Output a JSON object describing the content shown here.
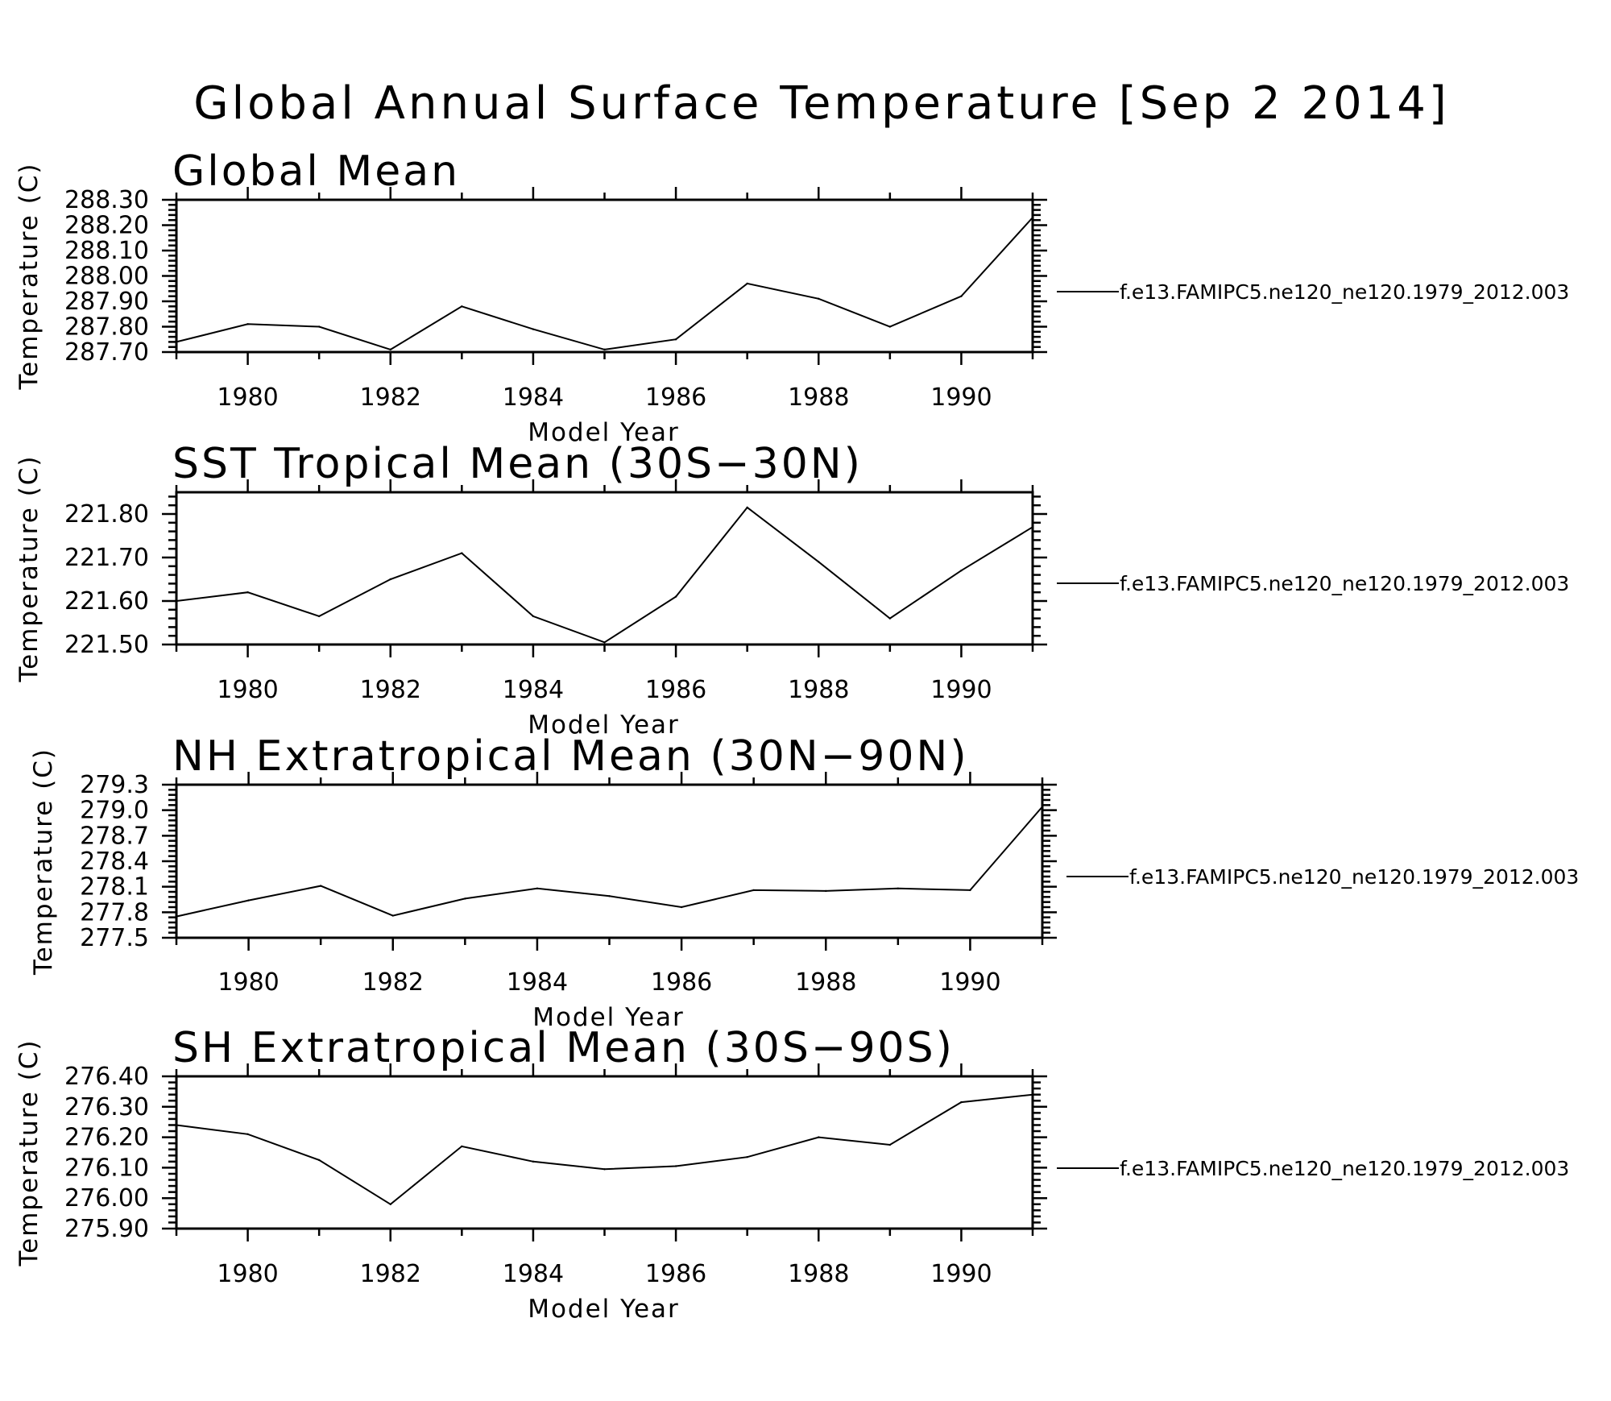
{
  "figure": {
    "title": "Global Annual Surface Temperature [Sep  2 2014]"
  },
  "chart_data": [
    {
      "type": "line",
      "title": "Global Mean",
      "xlabel": "Model Year",
      "ylabel": "Temperature (C)",
      "xlim": [
        1979,
        1991
      ],
      "ylim": [
        287.7,
        288.3
      ],
      "grid": false,
      "legend_placement": "right",
      "x_ticks": [
        "1980",
        "1982",
        "1984",
        "1986",
        "1988",
        "1990"
      ],
      "y_ticks": [
        "287.70",
        "287.80",
        "287.90",
        "288.00",
        "288.10",
        "288.20",
        "288.30"
      ],
      "series": [
        {
          "name": "f.e13.FAMIPC5.ne120_ne120.1979_2012.003",
          "x": [
            1979,
            1980,
            1981,
            1982,
            1983,
            1984,
            1985,
            1986,
            1987,
            1988,
            1989,
            1990,
            1991
          ],
          "y": [
            287.74,
            287.81,
            287.8,
            287.71,
            287.88,
            287.79,
            287.71,
            287.75,
            287.97,
            287.91,
            287.8,
            287.92,
            288.23
          ]
        }
      ]
    },
    {
      "type": "line",
      "title": "SST Tropical Mean (30S−30N)",
      "xlabel": "Model Year",
      "ylabel": "Temperature (C)",
      "xlim": [
        1979,
        1991
      ],
      "ylim": [
        221.5,
        221.85
      ],
      "grid": false,
      "legend_placement": "right",
      "x_ticks": [
        "1980",
        "1982",
        "1984",
        "1986",
        "1988",
        "1990"
      ],
      "y_ticks": [
        "221.50",
        "221.60",
        "221.70",
        "221.80"
      ],
      "series": [
        {
          "name": "f.e13.FAMIPC5.ne120_ne120.1979_2012.003",
          "x": [
            1979,
            1980,
            1981,
            1982,
            1983,
            1984,
            1985,
            1986,
            1987,
            1988,
            1989,
            1990,
            1991
          ],
          "y": [
            221.6,
            221.62,
            221.565,
            221.65,
            221.71,
            221.565,
            221.505,
            221.61,
            221.815,
            221.69,
            221.56,
            221.67,
            221.77
          ]
        }
      ]
    },
    {
      "type": "line",
      "title": "NH Extratropical Mean (30N−90N)",
      "xlabel": "Model Year",
      "ylabel": "Temperature (C)",
      "xlim": [
        1979,
        1991
      ],
      "ylim": [
        277.5,
        279.3
      ],
      "grid": false,
      "legend_placement": "right",
      "x_ticks": [
        "1980",
        "1982",
        "1984",
        "1986",
        "1988",
        "1990"
      ],
      "y_ticks": [
        "277.5",
        "277.8",
        "278.1",
        "278.4",
        "278.7",
        "279.0",
        "279.3"
      ],
      "series": [
        {
          "name": "f.e13.FAMIPC5.ne120_ne120.1979_2012.003",
          "x": [
            1979,
            1980,
            1981,
            1982,
            1983,
            1984,
            1985,
            1986,
            1987,
            1988,
            1989,
            1990,
            1991
          ],
          "y": [
            277.75,
            277.94,
            278.11,
            277.76,
            277.96,
            278.08,
            277.99,
            277.86,
            278.06,
            278.05,
            278.08,
            278.06,
            279.04
          ]
        }
      ]
    },
    {
      "type": "line",
      "title": "SH Extratropical Mean (30S−90S)",
      "xlabel": "Model Year",
      "ylabel": "Temperature (C)",
      "xlim": [
        1979,
        1991
      ],
      "ylim": [
        275.9,
        276.4
      ],
      "grid": false,
      "legend_placement": "right",
      "x_ticks": [
        "1980",
        "1982",
        "1984",
        "1986",
        "1988",
        "1990"
      ],
      "y_ticks": [
        "275.90",
        "276.00",
        "276.10",
        "276.20",
        "276.30",
        "276.40"
      ],
      "series": [
        {
          "name": "f.e13.FAMIPC5.ne120_ne120.1979_2012.003",
          "x": [
            1979,
            1980,
            1981,
            1982,
            1983,
            1984,
            1985,
            1986,
            1987,
            1988,
            1989,
            1990,
            1991
          ],
          "y": [
            276.24,
            276.21,
            276.125,
            275.98,
            276.17,
            276.12,
            276.095,
            276.105,
            276.135,
            276.2,
            276.175,
            276.315,
            276.34
          ]
        }
      ]
    }
  ]
}
